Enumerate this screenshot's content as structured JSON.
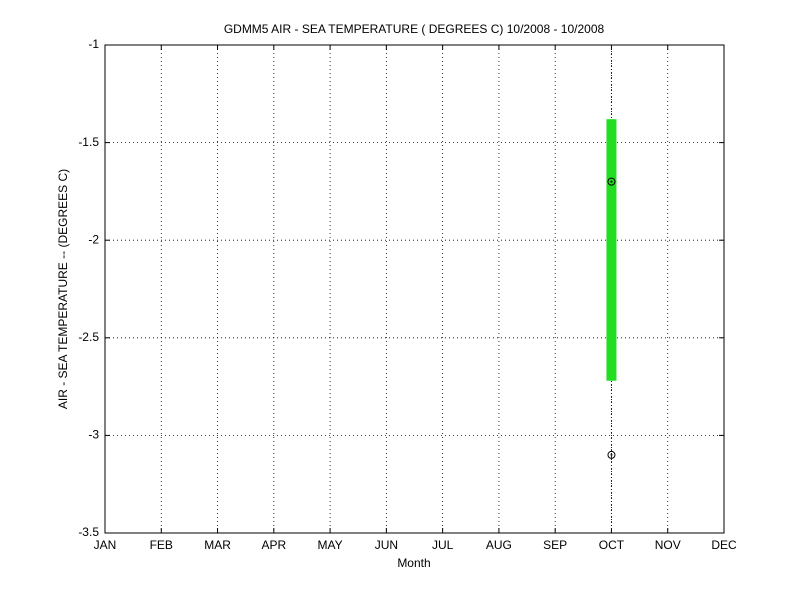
{
  "chart_data": {
    "type": "box",
    "title": "GDMM5  AIR - SEA TEMPERATURE ( DEGREES C) 10/2008 - 10/2008",
    "x_label": "Month",
    "y_label": "AIR - SEA TEMPERATURE -- (DEGREES C)",
    "categories": [
      "JAN",
      "FEB",
      "MAR",
      "APR",
      "MAY",
      "JUN",
      "JUL",
      "AUG",
      "SEP",
      "OCT",
      "NOV",
      "DEC"
    ],
    "boxes": [
      {
        "category": "OCT",
        "q_high": -1.38,
        "q_low": -2.72,
        "points": [
          -1.7,
          -3.1
        ],
        "color": "#22dd22"
      }
    ],
    "ylim": [
      -3.5,
      -1
    ],
    "yticks": [
      -3.5,
      -3,
      -2.5,
      -2,
      -1.5,
      -1
    ],
    "grid": true
  }
}
